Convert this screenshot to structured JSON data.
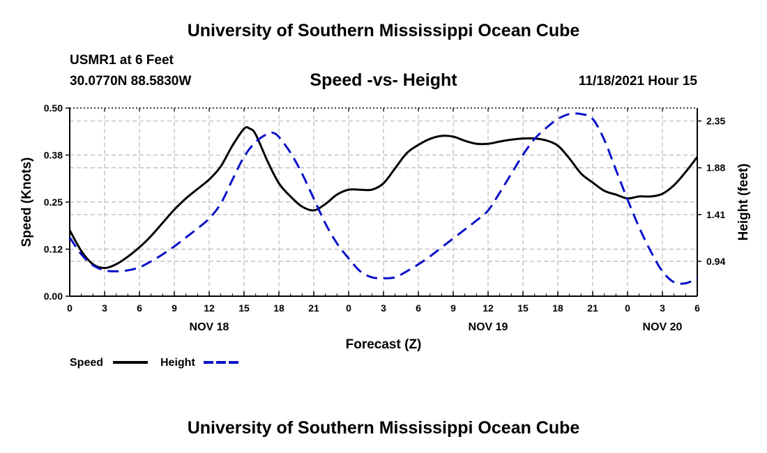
{
  "header": {
    "title": "University of Southern Mississippi Ocean Cube",
    "station": "USMR1 at 6 Feet",
    "coords": "30.0770N  88.5830W",
    "datetime": "11/18/2021 Hour 15",
    "footer_title": "University of Southern Mississippi Ocean Cube"
  },
  "colors": {
    "speed": "#000000",
    "height": "#0a10c8",
    "grid": "#b8b8b8"
  },
  "chart_data": {
    "type": "line",
    "title": "Speed -vs- Height",
    "xlabel": "Forecast (Z)",
    "ylabel": "Speed (Knots)",
    "y2label": "Height (feet)",
    "xlim": [
      0,
      54
    ],
    "ylim": [
      0,
      0.5
    ],
    "y2lim": [
      0.59,
      2.48
    ],
    "xticks": [
      0,
      3,
      6,
      9,
      12,
      15,
      18,
      21,
      24,
      27,
      30,
      33,
      36,
      39,
      42,
      45,
      48,
      51,
      54
    ],
    "xtick_labels": [
      "0",
      "3",
      "6",
      "9",
      "12",
      "15",
      "18",
      "21",
      "0",
      "3",
      "6",
      "9",
      "12",
      "15",
      "18",
      "21",
      "0",
      "3",
      "6"
    ],
    "yticks": [
      0,
      0.125,
      0.25,
      0.375,
      0.5
    ],
    "ytick_labels": [
      "0.00",
      "0.12",
      "0.25",
      "0.38",
      "0.50"
    ],
    "y2ticks": [
      0.94,
      1.41,
      1.88,
      2.35
    ],
    "y2tick_labels": [
      "0.94",
      "1.41",
      "1.88",
      "2.35"
    ],
    "date_labels": [
      {
        "x": 12,
        "label": "NOV 18"
      },
      {
        "x": 36,
        "label": "NOV 19"
      },
      {
        "x": 51,
        "label": "NOV 20"
      }
    ],
    "series": [
      {
        "name": "Speed",
        "axis": "left",
        "style": "solid",
        "x": [
          0,
          1,
          2,
          3,
          4,
          5,
          6,
          7,
          8,
          9,
          10,
          11,
          12,
          13,
          14,
          15,
          15.5,
          16,
          17,
          18,
          19,
          20,
          21,
          22,
          23,
          24,
          25,
          26,
          27,
          28,
          29,
          30,
          31,
          32,
          33,
          34,
          35,
          36,
          37,
          38,
          39,
          40,
          41,
          42,
          43,
          44,
          45,
          46,
          47,
          48,
          49,
          50,
          51,
          52,
          53,
          54
        ],
        "values": [
          0.175,
          0.12,
          0.085,
          0.075,
          0.085,
          0.105,
          0.13,
          0.16,
          0.195,
          0.23,
          0.26,
          0.285,
          0.31,
          0.345,
          0.4,
          0.445,
          0.445,
          0.43,
          0.36,
          0.3,
          0.265,
          0.238,
          0.228,
          0.245,
          0.27,
          0.283,
          0.283,
          0.283,
          0.3,
          0.34,
          0.38,
          0.402,
          0.418,
          0.426,
          0.424,
          0.413,
          0.405,
          0.405,
          0.411,
          0.416,
          0.419,
          0.419,
          0.414,
          0.4,
          0.366,
          0.326,
          0.302,
          0.28,
          0.27,
          0.26,
          0.265,
          0.265,
          0.272,
          0.295,
          0.33,
          0.37
        ]
      },
      {
        "name": "Height",
        "axis": "right",
        "style": "dashed",
        "x": [
          0,
          1,
          2,
          3,
          4,
          5,
          6,
          7,
          8,
          9,
          10,
          11,
          12,
          13,
          14,
          15,
          16,
          17,
          17.5,
          18,
          19,
          20,
          21,
          22,
          23,
          24,
          25,
          26,
          27,
          28,
          29,
          30,
          31,
          32,
          33,
          34,
          35,
          36,
          37,
          38,
          39,
          40,
          41,
          42,
          43,
          44,
          45,
          46,
          47,
          48,
          49,
          50,
          51,
          52,
          53,
          54
        ],
        "values": [
          1.18,
          1.01,
          0.9,
          0.85,
          0.84,
          0.85,
          0.88,
          0.94,
          1.01,
          1.09,
          1.18,
          1.27,
          1.37,
          1.52,
          1.76,
          1.99,
          2.14,
          2.22,
          2.23,
          2.19,
          2.03,
          1.82,
          1.57,
          1.32,
          1.12,
          0.97,
          0.84,
          0.78,
          0.77,
          0.78,
          0.84,
          0.91,
          0.99,
          1.08,
          1.17,
          1.26,
          1.35,
          1.45,
          1.63,
          1.82,
          2.01,
          2.17,
          2.28,
          2.37,
          2.42,
          2.42,
          2.37,
          2.16,
          1.86,
          1.56,
          1.28,
          1.04,
          0.84,
          0.73,
          0.72,
          0.77
        ]
      }
    ],
    "legend": [
      {
        "label": "Speed",
        "style": "solid"
      },
      {
        "label": "Height",
        "style": "dashed"
      }
    ]
  }
}
